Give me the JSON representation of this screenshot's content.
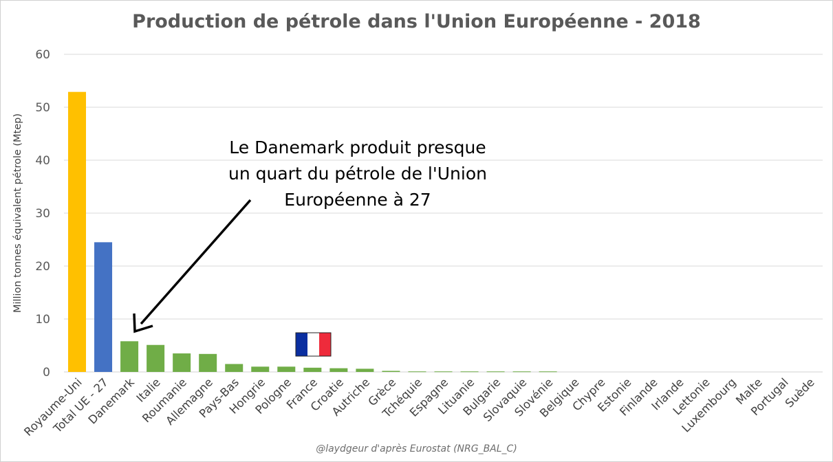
{
  "title": "Production de pétrole dans l'Union Européenne - 2018",
  "annotation": {
    "lines": [
      "Le Danemark produit presque",
      "un quart du pétrole de l'Union",
      "Européenne à 27"
    ]
  },
  "source": "@laydgeur d'après Eurostat (NRG_BAL_C)",
  "icons": {
    "flag": "france-flag-icon",
    "arrow": "arrow-icon"
  },
  "colors": {
    "royaume_uni": "#ffc000",
    "total_ue": "#4472c4",
    "countries": "#70ad47",
    "grid": "#d9d9d9",
    "flag_blue": "#0a2ea0",
    "flag_white": "#ffffff",
    "flag_red": "#ee2b3b"
  },
  "chart_data": {
    "type": "bar",
    "title": "Production de pétrole dans l'Union Européenne - 2018",
    "xlabel": "",
    "ylabel": "Million tonnes équivalent  pétrole  (Mtep)",
    "ylim": [
      0,
      60
    ],
    "yticks": [
      0,
      10,
      20,
      30,
      40,
      50,
      60
    ],
    "grid": true,
    "categories": [
      "Royaume-Uni",
      "Total UE - 27",
      "Danemark",
      "Italie",
      "Roumanie",
      "Allemagne",
      "Pays-Bas",
      "Hongrie",
      "Pologne",
      "France",
      "Croatie",
      "Autriche",
      "Grèce",
      "Tchéquie",
      "Espagne",
      "Lituanie",
      "Bulgarie",
      "Slovaquie",
      "Slovénie",
      "Belgique",
      "Chypre",
      "Estonie",
      "Finlande",
      "Irlande",
      "Lettonie",
      "Luxembourg",
      "Malte",
      "Portugal",
      "Suède"
    ],
    "values": [
      52.9,
      24.5,
      5.8,
      5.1,
      3.5,
      3.4,
      1.5,
      1.0,
      1.0,
      0.8,
      0.7,
      0.6,
      0.2,
      0.1,
      0.1,
      0.1,
      0.1,
      0.1,
      0.1,
      0,
      0,
      0,
      0,
      0,
      0,
      0,
      0,
      0,
      0
    ],
    "bar_colors": [
      "#ffc000",
      "#4472c4",
      "#70ad47",
      "#70ad47",
      "#70ad47",
      "#70ad47",
      "#70ad47",
      "#70ad47",
      "#70ad47",
      "#70ad47",
      "#70ad47",
      "#70ad47",
      "#70ad47",
      "#70ad47",
      "#70ad47",
      "#70ad47",
      "#70ad47",
      "#70ad47",
      "#70ad47",
      "#70ad47",
      "#70ad47",
      "#70ad47",
      "#70ad47",
      "#70ad47",
      "#70ad47",
      "#70ad47",
      "#70ad47",
      "#70ad47",
      "#70ad47"
    ]
  }
}
